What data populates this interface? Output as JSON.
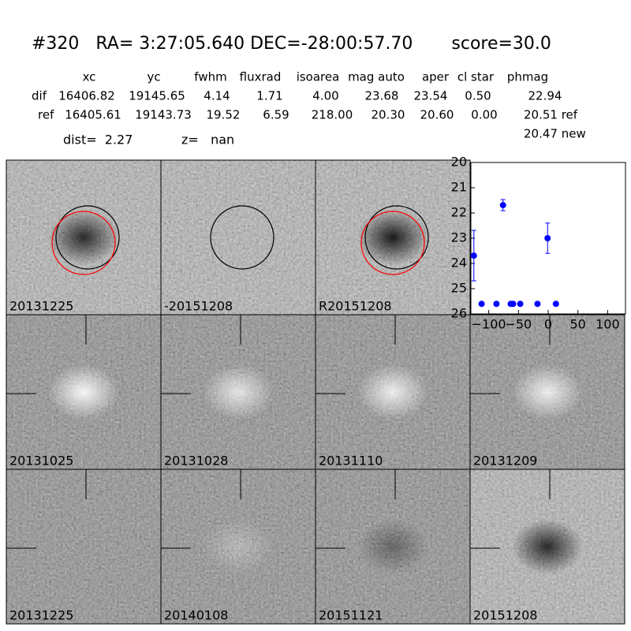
{
  "header": {
    "title": "#320   RA= 3:27:05.640 DEC=-28:00:57.70       score=30.0",
    "table": {
      "columns": [
        "xc",
        "yc",
        "fwhm",
        "fluxrad",
        "isoarea",
        "mag auto",
        "aper",
        "cl star",
        "phmag"
      ],
      "rows": [
        [
          "dif",
          "16406.82",
          "19145.65",
          "4.14",
          "1.71",
          "4.00",
          "23.68",
          "23.54",
          "0.50",
          "22.94"
        ],
        [
          "ref",
          "16405.61",
          "19143.73",
          "19.52",
          "6.59",
          "218.00",
          "20.30",
          "20.60",
          "0.00",
          "20.51 ref"
        ]
      ],
      "extra": "20.47 new"
    },
    "dist": "dist=  2.27",
    "z": "z=   nan"
  },
  "stamps": [
    {
      "label": "20131225"
    },
    {
      "label": "-20151208"
    },
    {
      "label": "R20151208"
    },
    {
      "label": "20131025"
    },
    {
      "label": "20131028"
    },
    {
      "label": "20131110"
    },
    {
      "label": "20131209"
    },
    {
      "label": "20131225",
      "color": "#ff0000"
    },
    {
      "label": "20140108"
    },
    {
      "label": "20151121"
    },
    {
      "label": "20151208"
    }
  ],
  "chart_data": {
    "type": "scatter",
    "color": "#0000ff",
    "x": [
      -125,
      -112,
      -87,
      -76,
      -63,
      -59,
      -47,
      -18,
      -1,
      13
    ],
    "values": [
      23.69,
      25.6,
      25.6,
      21.69,
      25.6,
      25.6,
      25.6,
      25.6,
      23.0,
      25.6
    ],
    "errors": [
      1.0,
      0.05,
      0.05,
      0.22,
      0.05,
      0.05,
      0.05,
      0.05,
      0.6,
      0.05
    ],
    "xlim": [
      -130,
      130
    ],
    "ylim": [
      26,
      20
    ],
    "xticks": [
      {
        "value": -100,
        "label": "−100"
      },
      {
        "value": -50,
        "label": "−50"
      },
      0,
      50,
      100
    ],
    "yticks": [
      20,
      21,
      22,
      23,
      24,
      25,
      26
    ]
  }
}
